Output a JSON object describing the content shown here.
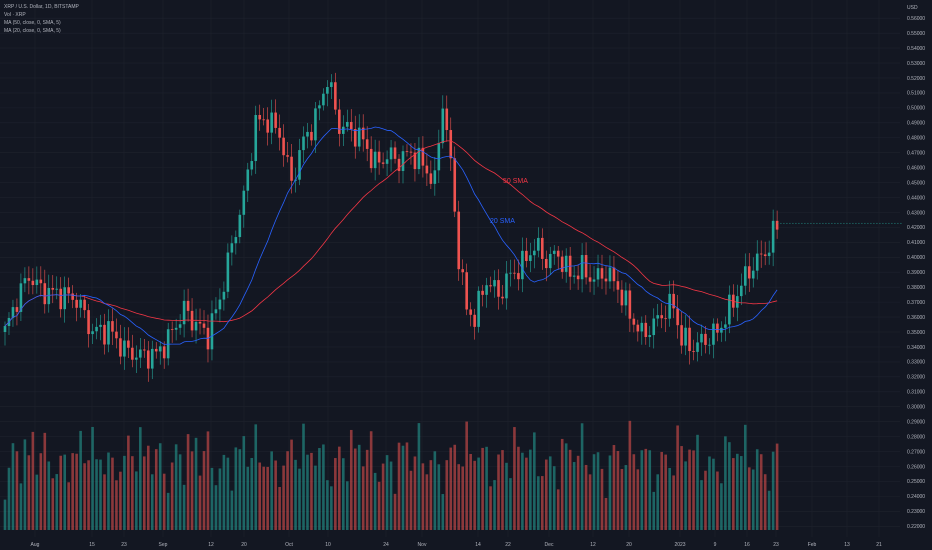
{
  "legend": {
    "title": "XRP / U.S. Dollar, 1D, BITSTAMP",
    "volume": "Vol · XRP",
    "ma50": "MA (50, close, 0, SMA, 5)",
    "ma20": "MA (20, close, 0, SMA, 5)"
  },
  "colors": {
    "background": "#131722",
    "up": "#26a69a",
    "down": "#ef5350",
    "ma20": "#2962ff",
    "ma50": "#f23645",
    "text": "#b2b5be"
  },
  "chart_data": {
    "type": "candlestick",
    "currency": "USD",
    "x_dates": [
      "Aug",
      "15",
      "23",
      "Sep",
      "12",
      "20",
      "Oct",
      "10",
      "24",
      "Nov",
      "14",
      "22",
      "Dec",
      "12",
      "20",
      "2023",
      "9",
      "16",
      "23",
      "Feb",
      "13",
      "21"
    ],
    "y_ticks": [
      "0.56000",
      "0.55000",
      "0.54000",
      "0.53000",
      "0.52000",
      "0.51000",
      "0.50000",
      "0.49000",
      "0.48000",
      "0.47000",
      "0.46000",
      "0.45000",
      "0.44000",
      "0.43000",
      "0.42000",
      "0.41000",
      "0.40000",
      "0.39000",
      "0.38000",
      "0.37000",
      "0.36000",
      "0.35000",
      "0.34000",
      "0.33000",
      "0.32000",
      "0.31000",
      "0.30000",
      "0.29000",
      "0.28000",
      "0.27000",
      "0.26000",
      "0.25000",
      "0.24000",
      "0.23000",
      "0.22000"
    ],
    "ylim": [
      0.2175,
      0.5675
    ],
    "last_price": 0.4228,
    "annotations": [
      "50 SMA",
      "20 SMA"
    ],
    "close_waypoints": [
      [
        0,
        0.35
      ],
      [
        3,
        0.372
      ],
      [
        6,
        0.388
      ],
      [
        9,
        0.378
      ],
      [
        14,
        0.375
      ],
      [
        18,
        0.372
      ],
      [
        22,
        0.35
      ],
      [
        26,
        0.352
      ],
      [
        30,
        0.338
      ],
      [
        34,
        0.334
      ],
      [
        38,
        0.335
      ],
      [
        41,
        0.345
      ],
      [
        45,
        0.365
      ],
      [
        48,
        0.355
      ],
      [
        51,
        0.348
      ],
      [
        54,
        0.372
      ],
      [
        57,
        0.408
      ],
      [
        60,
        0.44
      ],
      [
        63,
        0.49
      ],
      [
        66,
        0.492
      ],
      [
        69,
        0.483
      ],
      [
        72,
        0.45
      ],
      [
        75,
        0.478
      ],
      [
        78,
        0.492
      ],
      [
        81,
        0.52
      ],
      [
        84,
        0.488
      ],
      [
        87,
        0.485
      ],
      [
        90,
        0.478
      ],
      [
        93,
        0.462
      ],
      [
        96,
        0.468
      ],
      [
        99,
        0.465
      ],
      [
        102,
        0.47
      ],
      [
        105,
        0.462
      ],
      [
        108,
        0.45
      ],
      [
        110,
        0.505
      ],
      [
        112,
        0.462
      ],
      [
        114,
        0.4
      ],
      [
        116,
        0.365
      ],
      [
        118,
        0.36
      ],
      [
        121,
        0.385
      ],
      [
        124,
        0.375
      ],
      [
        127,
        0.388
      ],
      [
        130,
        0.395
      ],
      [
        133,
        0.408
      ],
      [
        136,
        0.398
      ],
      [
        139,
        0.402
      ],
      [
        142,
        0.388
      ],
      [
        145,
        0.392
      ],
      [
        148,
        0.385
      ],
      [
        151,
        0.39
      ],
      [
        154,
        0.38
      ],
      [
        157,
        0.362
      ],
      [
        160,
        0.348
      ],
      [
        163,
        0.355
      ],
      [
        166,
        0.365
      ],
      [
        168,
        0.368
      ],
      [
        170,
        0.345
      ],
      [
        173,
        0.34
      ],
      [
        176,
        0.345
      ],
      [
        179,
        0.35
      ],
      [
        182,
        0.365
      ],
      [
        185,
        0.382
      ],
      [
        188,
        0.395
      ],
      [
        190,
        0.4
      ],
      [
        192,
        0.408
      ],
      [
        194,
        0.422
      ]
    ],
    "volume_range": [
      0.22,
      0.31
    ]
  }
}
